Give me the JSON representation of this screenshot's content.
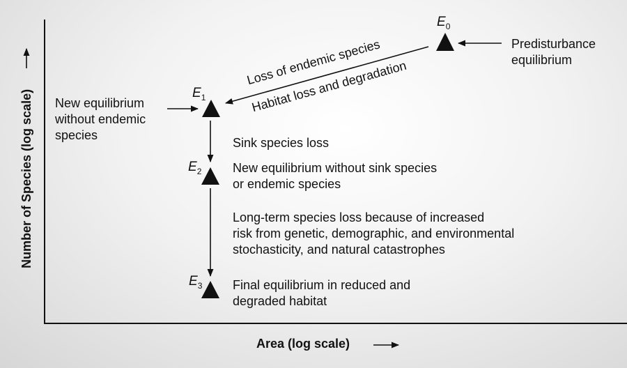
{
  "axes": {
    "x_label": "Area (log scale)",
    "y_label": "Number of Species (log scale)"
  },
  "equilibria": [
    {
      "id": "E0",
      "letter": "E",
      "sub": "0"
    },
    {
      "id": "E1",
      "letter": "E",
      "sub": "1"
    },
    {
      "id": "E2",
      "letter": "E",
      "sub": "2"
    },
    {
      "id": "E3",
      "letter": "E",
      "sub": "3"
    }
  ],
  "annotations": {
    "predisturbance": [
      "Predisturbance",
      "equilibrium"
    ],
    "loss_endemic": "Loss of endemic species",
    "habitat_loss": "Habitat loss and degradation",
    "new_eq_no_endemic": [
      "New equilibrium",
      "without endemic",
      "species"
    ],
    "sink_loss": "Sink species loss",
    "new_eq_no_sink": [
      "New equilibrium without sink species",
      "or endemic species"
    ],
    "long_term_loss": [
      "Long-term species loss because of increased",
      "risk from genetic, demographic, and environmental",
      "stochasticity, and natural catastrophes"
    ],
    "final_eq": [
      "Final equilibrium in reduced and",
      "degraded habitat"
    ]
  },
  "colors": {
    "ink": "#111111"
  }
}
